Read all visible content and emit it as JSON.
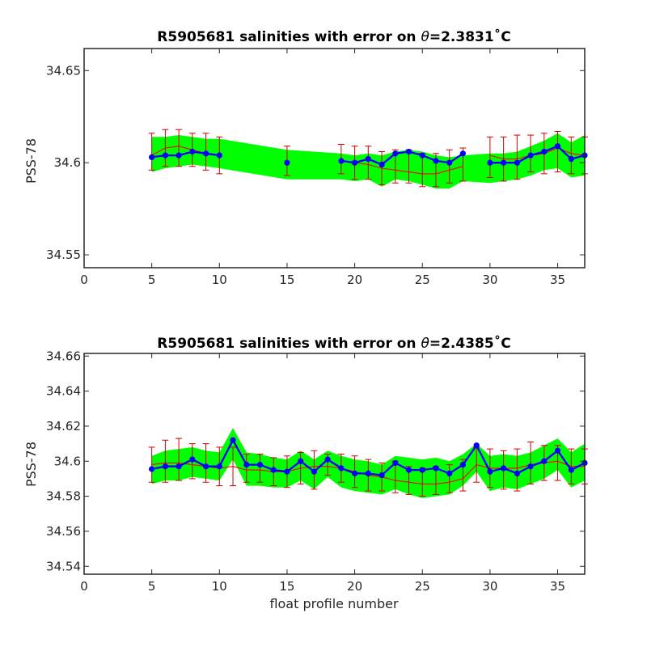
{
  "figure": {
    "xlabel": "float profile number"
  },
  "chart_data": [
    {
      "type": "line",
      "title_prefix": "R5905681 salinities with error on ",
      "theta_symbol": "θ",
      "title_value": "=2.3831",
      "title_unit": "˚C",
      "xlabel": "",
      "ylabel": "PSS-78",
      "xlim": [
        0,
        37
      ],
      "ylim": [
        34.543,
        34.662
      ],
      "xticks": [
        0,
        5,
        10,
        15,
        20,
        25,
        30,
        35
      ],
      "yticks": [
        34.55,
        34.6,
        34.65
      ],
      "ytick_labels": [
        "34.55",
        "34.6",
        "34.65"
      ],
      "grid": false,
      "colors": {
        "band": "#00ff00",
        "mapped": "#ff0000",
        "errorbar": "#cc0000",
        "observed": "#0000ff"
      },
      "band_x": [
        5,
        6,
        7,
        8,
        9,
        10,
        15,
        19,
        20,
        21,
        22,
        23,
        24,
        25,
        26,
        27,
        28,
        30,
        31,
        32,
        33,
        34,
        35,
        36,
        37
      ],
      "band_upper": [
        34.614,
        34.614,
        34.615,
        34.614,
        34.613,
        34.613,
        34.607,
        34.605,
        34.604,
        34.605,
        34.604,
        34.606,
        34.607,
        34.606,
        34.604,
        34.603,
        34.604,
        34.605,
        34.605,
        34.606,
        34.609,
        34.612,
        34.616,
        34.611,
        34.615
      ],
      "band_lower": [
        34.595,
        34.597,
        34.598,
        34.599,
        34.598,
        34.597,
        34.591,
        34.591,
        34.59,
        34.591,
        34.587,
        34.591,
        34.59,
        34.588,
        34.586,
        34.586,
        34.59,
        34.589,
        34.59,
        34.591,
        34.593,
        34.596,
        34.597,
        34.592,
        34.593
      ],
      "series": [
        {
          "role": "mapped",
          "segments": [
            {
              "x": [
                5,
                6,
                7,
                8,
                9,
                10
              ],
              "y": [
                34.604,
                34.608,
                34.609,
                34.607,
                34.605,
                34.604
              ]
            },
            {
              "x": [
                19,
                20,
                21,
                22,
                23,
                24,
                25,
                26,
                27,
                28
              ],
              "y": [
                34.601,
                34.6,
                34.599,
                34.597,
                34.596,
                34.595,
                34.594,
                34.594,
                34.596,
                34.598
              ]
            },
            {
              "x": [
                30,
                31,
                32,
                33,
                34,
                35,
                36,
                37
              ],
              "y": [
                34.604,
                34.602,
                34.602,
                34.604,
                34.605,
                34.608,
                34.605,
                34.604
              ]
            }
          ],
          "error": {
            "x": [
              5,
              6,
              7,
              8,
              9,
              10,
              15,
              19,
              20,
              21,
              22,
              23,
              24,
              25,
              26,
              27,
              28,
              30,
              31,
              32,
              33,
              34,
              35,
              36,
              37
            ],
            "y": [
              34.606,
              34.608,
              34.608,
              34.607,
              34.606,
              34.604,
              34.601,
              34.602,
              34.6,
              34.6,
              34.597,
              34.598,
              34.598,
              34.596,
              34.596,
              34.598,
              34.599,
              34.603,
              34.602,
              34.603,
              34.605,
              34.605,
              34.606,
              34.604,
              34.604
            ],
            "err": [
              0.01,
              0.01,
              0.01,
              0.009,
              0.01,
              0.01,
              0.008,
              0.008,
              0.009,
              0.009,
              0.009,
              0.009,
              0.009,
              0.009,
              0.009,
              0.009,
              0.009,
              0.011,
              0.012,
              0.012,
              0.01,
              0.011,
              0.011,
              0.01,
              0.01
            ]
          }
        },
        {
          "role": "observed",
          "segments": [
            {
              "x": [
                5,
                6,
                7,
                8,
                9,
                10
              ],
              "y": [
                34.603,
                34.604,
                34.604,
                34.606,
                34.605,
                34.604
              ]
            },
            {
              "x": [
                15
              ],
              "y": [
                34.6
              ]
            },
            {
              "x": [
                19,
                20,
                21,
                22,
                23,
                24,
                25,
                26,
                27,
                28
              ],
              "y": [
                34.601,
                34.6,
                34.602,
                34.599,
                34.605,
                34.606,
                34.604,
                34.601,
                34.6,
                34.605
              ]
            },
            {
              "x": [
                30,
                31,
                32,
                33,
                34,
                35,
                36,
                37
              ],
              "y": [
                34.6,
                34.6,
                34.6,
                34.604,
                34.606,
                34.609,
                34.602,
                34.604
              ]
            }
          ]
        }
      ]
    },
    {
      "type": "line",
      "title_prefix": "R5905681 salinities with error on ",
      "theta_symbol": "θ",
      "title_value": "=2.4385",
      "title_unit": "˚C",
      "xlabel": "float profile number",
      "ylabel": "PSS-78",
      "xlim": [
        0,
        37
      ],
      "ylim": [
        34.5355,
        34.6615
      ],
      "xticks": [
        0,
        5,
        10,
        15,
        20,
        25,
        30,
        35
      ],
      "yticks": [
        34.54,
        34.56,
        34.58,
        34.6,
        34.62,
        34.64,
        34.66
      ],
      "ytick_labels": [
        "34.54",
        "34.56",
        "34.58",
        "34.6",
        "34.62",
        "34.64",
        "34.66"
      ],
      "grid": false,
      "colors": {
        "band": "#00ff00",
        "mapped": "#ff0000",
        "errorbar": "#cc0000",
        "observed": "#0000ff"
      },
      "band_x": [
        5,
        6,
        7,
        8,
        9,
        10,
        11,
        12,
        13,
        14,
        15,
        16,
        17,
        18,
        19,
        20,
        21,
        22,
        23,
        24,
        25,
        26,
        27,
        28,
        29,
        30,
        31,
        32,
        33,
        34,
        35,
        36,
        37
      ],
      "band_upper": [
        34.603,
        34.606,
        34.607,
        34.608,
        34.606,
        34.605,
        34.619,
        34.605,
        34.604,
        34.602,
        34.601,
        34.606,
        34.601,
        34.606,
        34.603,
        34.601,
        34.6,
        34.598,
        34.603,
        34.602,
        34.601,
        34.602,
        34.6,
        34.604,
        34.61,
        34.603,
        34.604,
        34.603,
        34.605,
        34.609,
        34.613,
        34.605,
        34.61
      ],
      "band_lower": [
        34.587,
        34.589,
        34.589,
        34.591,
        34.59,
        34.589,
        34.601,
        34.586,
        34.586,
        34.585,
        34.585,
        34.589,
        34.584,
        34.591,
        34.585,
        34.583,
        34.582,
        34.581,
        34.584,
        34.581,
        34.579,
        34.58,
        34.581,
        34.586,
        34.594,
        34.583,
        34.585,
        34.584,
        34.587,
        34.59,
        34.595,
        34.585,
        34.589
      ],
      "series": [
        {
          "role": "mapped",
          "segments": [
            {
              "x": [
                5,
                6,
                7,
                8,
                9,
                10,
                11,
                12,
                13,
                14,
                15,
                16,
                17,
                18,
                19,
                20,
                21,
                22,
                23,
                24,
                25,
                26,
                27,
                28,
                29,
                30,
                31,
                32,
                33,
                34,
                35,
                36,
                37
              ],
              "y": [
                34.598,
                34.599,
                34.599,
                34.598,
                34.597,
                34.596,
                34.597,
                34.595,
                34.595,
                34.594,
                34.594,
                34.596,
                34.597,
                34.597,
                34.596,
                34.594,
                34.592,
                34.591,
                34.589,
                34.588,
                34.587,
                34.587,
                34.588,
                34.59,
                34.598,
                34.596,
                34.596,
                34.596,
                34.598,
                34.599,
                34.6,
                34.597,
                34.597
              ]
            }
          ],
          "error": {
            "x": [
              5,
              6,
              7,
              8,
              9,
              10,
              11,
              12,
              13,
              14,
              15,
              16,
              17,
              18,
              19,
              20,
              21,
              22,
              23,
              24,
              25,
              26,
              27,
              28,
              29,
              30,
              31,
              32,
              33,
              34,
              35,
              36,
              37
            ],
            "y": [
              34.598,
              34.6,
              34.601,
              34.6,
              34.599,
              34.597,
              34.597,
              34.596,
              34.596,
              34.594,
              34.594,
              34.596,
              34.595,
              34.598,
              34.596,
              34.594,
              34.592,
              34.591,
              34.591,
              34.589,
              34.588,
              34.589,
              34.59,
              34.592,
              34.598,
              34.596,
              34.595,
              34.595,
              34.599,
              34.599,
              34.599,
              34.597,
              34.597
            ],
            "err": [
              0.01,
              0.012,
              0.012,
              0.01,
              0.011,
              0.011,
              0.011,
              0.008,
              0.008,
              0.008,
              0.009,
              0.009,
              0.011,
              0.006,
              0.008,
              0.009,
              0.009,
              0.008,
              0.009,
              0.008,
              0.008,
              0.008,
              0.008,
              0.009,
              0.01,
              0.011,
              0.011,
              0.012,
              0.012,
              0.01,
              0.01,
              0.01,
              0.01
            ]
          }
        },
        {
          "role": "observed",
          "segments": [
            {
              "x": [
                5,
                6,
                7,
                8,
                9,
                10,
                11,
                12,
                13,
                14,
                15,
                16,
                17,
                18,
                19,
                20,
                21,
                22,
                23,
                24,
                25,
                26,
                27,
                28,
                29,
                30,
                31,
                32,
                33,
                34,
                35,
                36,
                37
              ],
              "y": [
                34.5955,
                34.597,
                34.597,
                34.601,
                34.597,
                34.597,
                34.612,
                34.598,
                34.598,
                34.595,
                34.594,
                34.6,
                34.594,
                34.601,
                34.596,
                34.593,
                34.593,
                34.592,
                34.599,
                34.595,
                34.595,
                34.596,
                34.593,
                34.598,
                34.609,
                34.594,
                34.596,
                34.593,
                34.597,
                34.6,
                34.606,
                34.595,
                34.599
              ]
            }
          ]
        }
      ]
    }
  ]
}
